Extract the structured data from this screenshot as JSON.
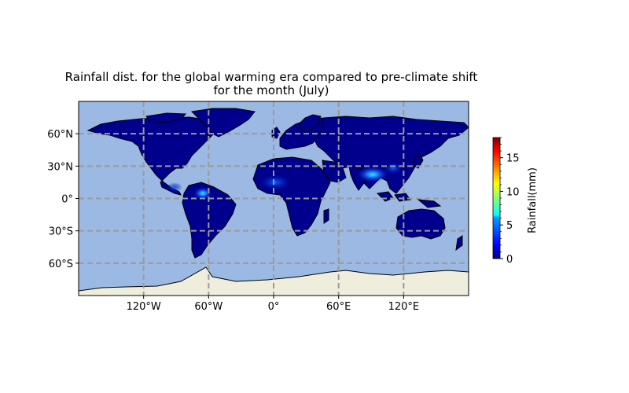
{
  "title_line1": "Rainfall dist. for the global warming era compared to pre-climate shift",
  "title_line2": "for the month (July)",
  "map": {
    "projection": "PlateCarree",
    "ocean_color": "#9bb9e3",
    "land_color": "#00008c",
    "antarctica_color": "#efeedd",
    "gridline_color": "#9a9a9a",
    "lat_ticks": [
      {
        "value": 60,
        "label": "60°N"
      },
      {
        "value": 30,
        "label": "30°N"
      },
      {
        "value": 0,
        "label": "0°"
      },
      {
        "value": -30,
        "label": "30°S"
      },
      {
        "value": -60,
        "label": "60°S"
      }
    ],
    "lon_ticks": [
      {
        "value": -120,
        "label": "120°W"
      },
      {
        "value": -60,
        "label": "60°W"
      },
      {
        "value": 0,
        "label": "0°"
      },
      {
        "value": 60,
        "label": "60°E"
      },
      {
        "value": 120,
        "label": "120°E"
      }
    ]
  },
  "colorbar": {
    "label": "Rainfall(mm)",
    "colormap": "jet",
    "min": 0,
    "max": 18,
    "ticks": [
      {
        "value": 0,
        "label": "0"
      },
      {
        "value": 5,
        "label": "5"
      },
      {
        "value": 10,
        "label": "10"
      },
      {
        "value": 15,
        "label": "15"
      }
    ]
  }
}
